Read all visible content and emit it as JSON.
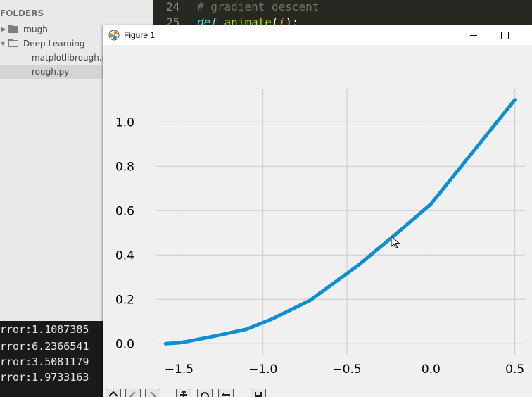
{
  "sidebar": {
    "header": "FOLDERS",
    "items": [
      {
        "label": "rough",
        "type": "folder"
      },
      {
        "label": "Deep Learning",
        "type": "folder-open"
      },
      {
        "label": "matplotlibrough.py",
        "type": "file"
      },
      {
        "label": "rough.py",
        "type": "file",
        "selected": true
      }
    ]
  },
  "editor": {
    "lines": [
      {
        "number": "24",
        "text": "# gradient descent"
      },
      {
        "number": "25",
        "keyword": "def",
        "function": "animate",
        "open": "(",
        "param": "i",
        "close": "):"
      }
    ]
  },
  "terminal": {
    "lines": [
      "rror:1.1087385",
      "rror:6.2366541",
      "rror:3.5081179",
      "rror:1.9733163"
    ]
  },
  "figure": {
    "title": "Figure 1",
    "toolbar_icons": [
      "home-icon",
      "back-icon",
      "forward-icon",
      "pan-icon",
      "zoom-icon",
      "configure-icon",
      "save-icon"
    ]
  },
  "colors": {
    "line": "#0f8fd3",
    "editor_bg": "#272822",
    "sidebar_bg": "#e9e9e9",
    "plot_bg": "#f0f0f0",
    "grid": "#cbcbcb"
  },
  "chart_data": {
    "type": "line",
    "x": [
      -1.58,
      -1.5,
      -1.45,
      -1.35,
      -1.25,
      -1.1,
      -0.95,
      -0.72,
      -0.43,
      -0.2,
      0.0,
      0.5
    ],
    "y": [
      0.0,
      0.004,
      0.01,
      0.025,
      0.04,
      0.065,
      0.11,
      0.195,
      0.355,
      0.5,
      0.63,
      1.1
    ],
    "xticks": [
      -1.5,
      -1.0,
      -0.5,
      0.0,
      0.5
    ],
    "xtick_labels": [
      "−1.5",
      "−1.0",
      "−0.5",
      "0.0",
      "0.5"
    ],
    "yticks": [
      0.0,
      0.2,
      0.4,
      0.6,
      0.8,
      1.0
    ],
    "ytick_labels": [
      "0.0",
      "0.2",
      "0.4",
      "0.6",
      "0.8",
      "1.0"
    ],
    "xlim": [
      -1.64,
      0.56
    ],
    "ylim": [
      -0.05,
      1.15
    ],
    "grid": true
  }
}
